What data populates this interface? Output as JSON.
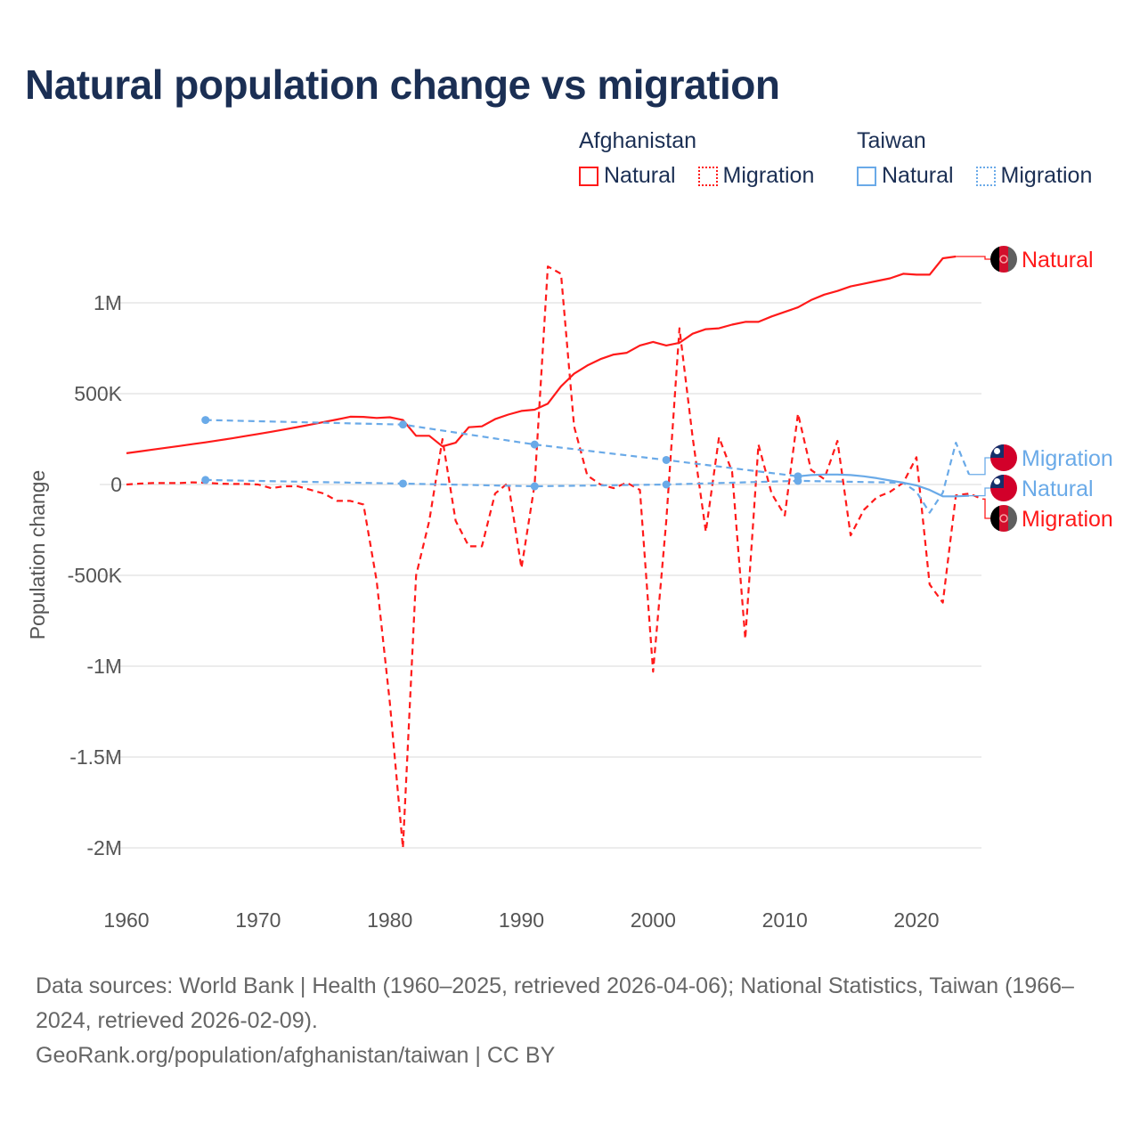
{
  "title": "Natural population change vs migration",
  "legend": {
    "groups": [
      {
        "name": "Afghanistan",
        "items": [
          {
            "label": "Natural",
            "style": "solid"
          },
          {
            "label": "Migration",
            "style": "dotted"
          }
        ],
        "color": "#ff1a1a"
      },
      {
        "name": "Taiwan",
        "items": [
          {
            "label": "Natural",
            "style": "solid"
          },
          {
            "label": "Migration",
            "style": "dotted"
          }
        ],
        "color": "#6aaae8"
      }
    ]
  },
  "chart_data": {
    "type": "line",
    "title": "Natural population change vs migration",
    "xlabel": "",
    "ylabel": "Population change",
    "xlim": [
      1960,
      2025
    ],
    "ylim": [
      -2000000,
      1250000
    ],
    "x_ticks": [
      1960,
      1970,
      1980,
      1990,
      2000,
      2010,
      2020
    ],
    "x_tick_labels": [
      "1960",
      "1970",
      "1980",
      "1990",
      "2000",
      "2010",
      "2020"
    ],
    "y_ticks": [
      1000000,
      500000,
      0,
      -500000,
      -1000000,
      -1500000,
      -2000000
    ],
    "y_tick_labels": [
      "1M",
      "500K",
      "0",
      "-500K",
      "-1M",
      "-1.5M",
      "-2M"
    ],
    "grid": true,
    "legend_position": "top-right",
    "series": [
      {
        "name": "Afghanistan Natural",
        "end_label": "Natural",
        "country": "afghanistan",
        "color": "#ff1a1a",
        "dash": false,
        "x": [
          1960,
          1961,
          1962,
          1963,
          1964,
          1965,
          1966,
          1967,
          1968,
          1969,
          1970,
          1971,
          1972,
          1973,
          1974,
          1975,
          1976,
          1977,
          1978,
          1979,
          1980,
          1981,
          1982,
          1983,
          1984,
          1985,
          1986,
          1987,
          1988,
          1989,
          1990,
          1991,
          1992,
          1993,
          1994,
          1995,
          1996,
          1997,
          1998,
          1999,
          2000,
          2001,
          2002,
          2003,
          2004,
          2005,
          2006,
          2007,
          2008,
          2009,
          2010,
          2011,
          2012,
          2013,
          2014,
          2015,
          2016,
          2017,
          2018,
          2019,
          2020,
          2021,
          2022,
          2023
        ],
        "y": [
          172000,
          182000,
          192000,
          202000,
          212000,
          222000,
          232000,
          243000,
          254000,
          266000,
          278000,
          290000,
          303000,
          316000,
          330000,
          344000,
          358000,
          373000,
          372000,
          366000,
          370000,
          355000,
          268000,
          268000,
          210000,
          230000,
          315000,
          320000,
          360000,
          385000,
          405000,
          412000,
          445000,
          540000,
          610000,
          655000,
          690000,
          715000,
          725000,
          765000,
          785000,
          765000,
          780000,
          830000,
          855000,
          860000,
          880000,
          895000,
          895000,
          925000,
          950000,
          975000,
          1015000,
          1045000,
          1065000,
          1090000,
          1105000,
          1120000,
          1135000,
          1160000,
          1155000,
          1155000,
          1245000,
          1255000
        ]
      },
      {
        "name": "Afghanistan Migration",
        "end_label": "Migration",
        "country": "afghanistan",
        "color": "#ff1a1a",
        "dash": true,
        "x": [
          1960,
          1961,
          1962,
          1963,
          1964,
          1965,
          1966,
          1967,
          1968,
          1969,
          1970,
          1971,
          1972,
          1973,
          1974,
          1975,
          1976,
          1977,
          1978,
          1979,
          1980,
          1981,
          1982,
          1983,
          1984,
          1985,
          1986,
          1987,
          1988,
          1989,
          1990,
          1991,
          1992,
          1993,
          1994,
          1995,
          1996,
          1997,
          1998,
          1999,
          2000,
          2001,
          2002,
          2003,
          2004,
          2005,
          2006,
          2007,
          2008,
          2009,
          2010,
          2011,
          2012,
          2013,
          2014,
          2015,
          2016,
          2017,
          2018,
          2019,
          2020,
          2021,
          2022,
          2023,
          2024,
          2025
        ],
        "y": [
          0,
          5000,
          8000,
          8000,
          8000,
          12000,
          10000,
          5000,
          3000,
          3000,
          0,
          -20000,
          -10000,
          -10000,
          -30000,
          -50000,
          -90000,
          -90000,
          -110000,
          -530000,
          -1200000,
          -2000000,
          -500000,
          -200000,
          250000,
          -200000,
          -340000,
          -340000,
          -50000,
          10000,
          -460000,
          0,
          1200000,
          1160000,
          320000,
          50000,
          0,
          -20000,
          10000,
          -30000,
          -1030000,
          -200000,
          860000,
          260000,
          -260000,
          260000,
          70000,
          -850000,
          220000,
          -50000,
          -170000,
          390000,
          80000,
          30000,
          240000,
          -280000,
          -140000,
          -70000,
          -40000,
          10000,
          150000,
          -550000,
          -650000,
          -60000,
          -50000,
          -80000
        ]
      },
      {
        "name": "Taiwan Natural",
        "end_label": "Natural",
        "country": "taiwan",
        "color": "#6aaae8",
        "dash": false,
        "sparse_until": 2011,
        "markers": [
          1966,
          1981,
          1991,
          2001,
          2011
        ],
        "x": [
          1966,
          1981,
          1991,
          2001,
          2011,
          2012,
          2013,
          2014,
          2015,
          2016,
          2017,
          2018,
          2019,
          2020,
          2021,
          2022,
          2023,
          2024
        ],
        "y": [
          355000,
          330000,
          220000,
          135000,
          45000,
          52000,
          55000,
          55000,
          52000,
          45000,
          35000,
          22000,
          10000,
          -5000,
          -30000,
          -65000,
          -65000,
          -62000
        ]
      },
      {
        "name": "Taiwan Migration",
        "end_label": "Migration",
        "country": "taiwan",
        "color": "#6aaae8",
        "dash": true,
        "markers": [
          1966,
          1981,
          1991,
          2001,
          2011
        ],
        "x": [
          1966,
          1981,
          1991,
          2001,
          2011,
          2019,
          2020,
          2021,
          2022,
          2023,
          2024
        ],
        "y": [
          25000,
          5000,
          -10000,
          0,
          20000,
          10000,
          -40000,
          -155000,
          -45000,
          230000,
          55000
        ]
      }
    ]
  },
  "footer": {
    "sources": "Data sources: World Bank | Health (1960–2025, retrieved 2026-04-06); National Statistics, Taiwan (1966–2024, retrieved 2026-02-09).",
    "credit": "GeoRank.org/population/afghanistan/taiwan | CC BY"
  }
}
